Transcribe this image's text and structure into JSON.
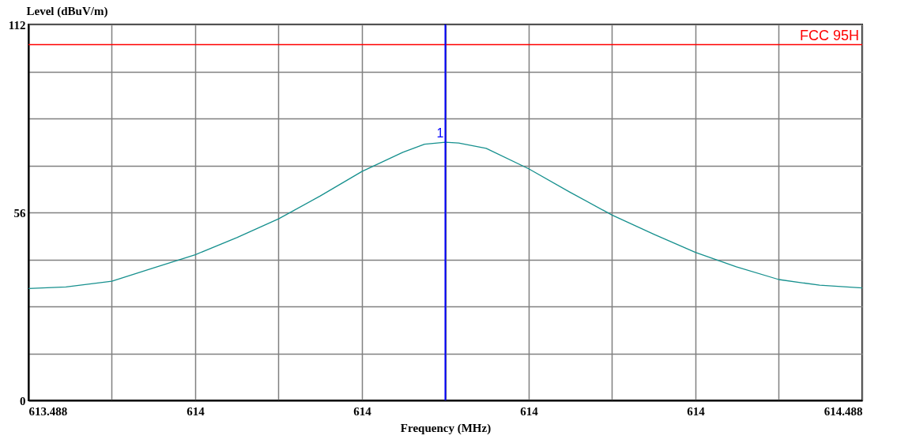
{
  "chart_data": {
    "type": "line",
    "xlabel": "Frequency (MHz)",
    "ylabel": "Level (dBuV/m)",
    "x": [
      613.488,
      613.533,
      613.588,
      613.637,
      613.688,
      613.738,
      613.788,
      613.838,
      613.888,
      613.937,
      613.963,
      613.988,
      614.004,
      614.037,
      614.088,
      614.137,
      614.188,
      614.238,
      614.288,
      614.337,
      614.388,
      614.437,
      614.488
    ],
    "series": [
      {
        "color": "#16908e",
        "values": [
          33.3,
          33.8,
          35.5,
          39.4,
          43.4,
          48.5,
          54.1,
          60.9,
          68.2,
          73.9,
          76.3,
          76.9,
          76.7,
          75.1,
          69.0,
          62.1,
          55.2,
          49.5,
          44.1,
          39.8,
          36.0,
          34.3,
          33.5
        ]
      }
    ],
    "xlim": [
      613.488,
      614.488
    ],
    "xticks": [
      613.488,
      {
        "value": 613.588,
        "label": null
      },
      {
        "value": 613.688,
        "label": "614"
      },
      {
        "value": 613.788,
        "label": null
      },
      {
        "value": 613.888,
        "label": "614"
      },
      {
        "value": 613.988,
        "label": null
      },
      {
        "value": 614.088,
        "label": "614"
      },
      {
        "value": 614.188,
        "label": null
      },
      {
        "value": 614.288,
        "label": "614"
      },
      {
        "value": 614.388,
        "label": null
      },
      614.488
    ],
    "ylim": [
      0,
      112
    ],
    "yticks": [
      0,
      {
        "value": 14,
        "label": null
      },
      {
        "value": 28,
        "label": null
      },
      {
        "value": 42,
        "label": null
      },
      56,
      {
        "value": 70,
        "label": null
      },
      {
        "value": 84,
        "label": null
      },
      {
        "value": 98,
        "label": null
      },
      112
    ],
    "ref_lines": [
      {
        "axis": "y",
        "value": 106,
        "label": "FCC 95H",
        "color": "#ff0000"
      },
      {
        "axis": "x",
        "value": 613.988,
        "color": "#0000ff"
      }
    ],
    "annotations": [
      {
        "text": "1",
        "x": 613.988,
        "y": 76.9
      }
    ],
    "grid": true,
    "marker": "none",
    "line_style": "solid"
  }
}
